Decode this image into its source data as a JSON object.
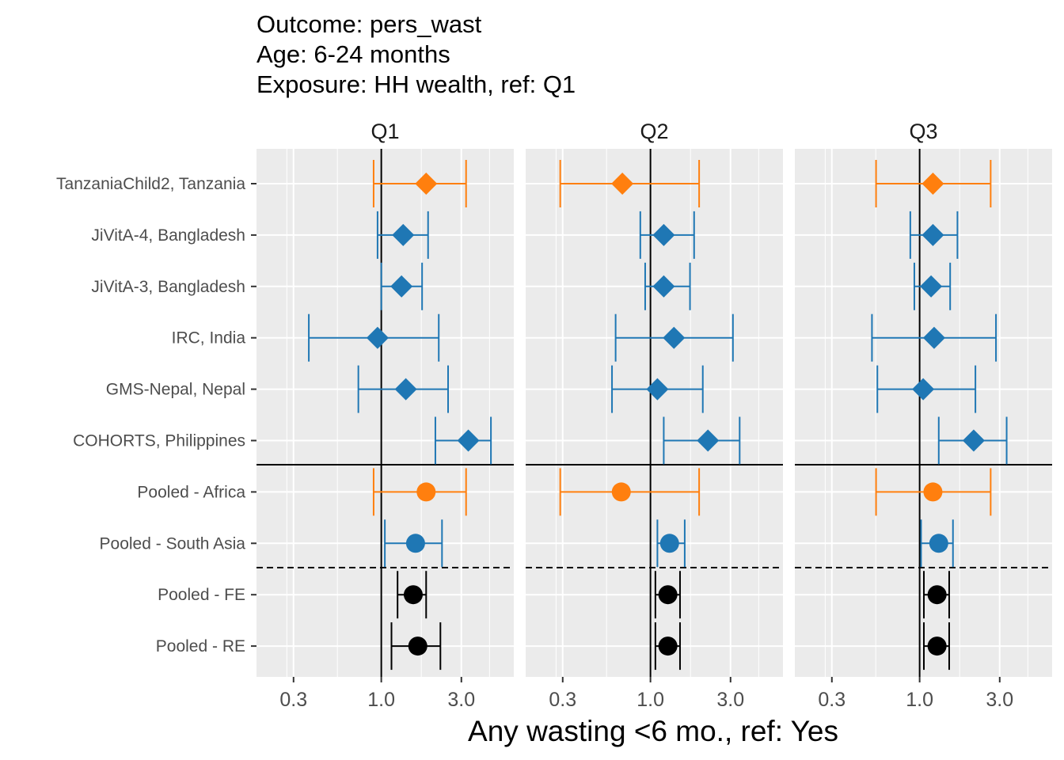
{
  "titles": {
    "line1": "Outcome: pers_wast",
    "line2": "Age: 6-24 months",
    "line3": "Exposure: HH wealth, ref: Q1"
  },
  "colors": {
    "africa": "#ff7f0e",
    "south_asia": "#1f77b4",
    "pooled": "#000000",
    "panel_bg": "#ebebeb",
    "grid": "#ffffff"
  },
  "chart_data": {
    "type": "forest",
    "xlabel": "Any wasting  <6 mo., ref: Yes",
    "x_scale": "log",
    "xlim": [
      0.25,
      6.5
    ],
    "x_ticks": [
      0.3,
      1.0,
      3.0
    ],
    "x_tick_labels": [
      "0.3",
      "1.0",
      "3.0"
    ],
    "reference_line": 1.0,
    "grid": true,
    "panels": [
      "Q1",
      "Q2",
      "Q3"
    ],
    "rows": [
      {
        "label": "TanzaniaChild2, Tanzania",
        "group": "africa",
        "shape": "diamond",
        "estimates": [
          {
            "est": 1.85,
            "lo": 0.9,
            "hi": 3.2
          },
          {
            "est": 0.68,
            "lo": 0.29,
            "hi": 1.95
          },
          {
            "est": 1.2,
            "lo": 0.55,
            "hi": 2.65
          }
        ]
      },
      {
        "label": "JiVitA-4, Bangladesh",
        "group": "south_asia",
        "shape": "diamond",
        "estimates": [
          {
            "est": 1.35,
            "lo": 0.95,
            "hi": 1.9
          },
          {
            "est": 1.2,
            "lo": 0.87,
            "hi": 1.82
          },
          {
            "est": 1.2,
            "lo": 0.88,
            "hi": 1.68
          }
        ]
      },
      {
        "label": "JiVitA-3, Bangladesh",
        "group": "south_asia",
        "shape": "diamond",
        "estimates": [
          {
            "est": 1.32,
            "lo": 1.0,
            "hi": 1.75
          },
          {
            "est": 1.2,
            "lo": 0.93,
            "hi": 1.72
          },
          {
            "est": 1.17,
            "lo": 0.93,
            "hi": 1.52
          }
        ]
      },
      {
        "label": "IRC, India",
        "group": "south_asia",
        "shape": "diamond",
        "estimates": [
          {
            "est": 0.95,
            "lo": 0.37,
            "hi": 2.2
          },
          {
            "est": 1.38,
            "lo": 0.62,
            "hi": 3.1
          },
          {
            "est": 1.22,
            "lo": 0.52,
            "hi": 2.85
          }
        ]
      },
      {
        "label": "GMS-Nepal, Nepal",
        "group": "south_asia",
        "shape": "diamond",
        "estimates": [
          {
            "est": 1.4,
            "lo": 0.73,
            "hi": 2.5
          },
          {
            "est": 1.1,
            "lo": 0.59,
            "hi": 2.05
          },
          {
            "est": 1.05,
            "lo": 0.56,
            "hi": 2.15
          }
        ]
      },
      {
        "label": "COHORTS, Philippines",
        "group": "south_asia",
        "shape": "diamond",
        "estimates": [
          {
            "est": 3.3,
            "lo": 2.1,
            "hi": 4.5
          },
          {
            "est": 2.2,
            "lo": 1.2,
            "hi": 3.4
          },
          {
            "est": 2.1,
            "lo": 1.3,
            "hi": 3.3
          }
        ]
      },
      {
        "label": "Pooled - Africa",
        "group": "africa",
        "shape": "circle",
        "estimates": [
          {
            "est": 1.85,
            "lo": 0.9,
            "hi": 3.2
          },
          {
            "est": 0.67,
            "lo": 0.29,
            "hi": 1.95
          },
          {
            "est": 1.2,
            "lo": 0.55,
            "hi": 2.65
          }
        ]
      },
      {
        "label": "Pooled - South Asia",
        "group": "south_asia",
        "shape": "circle",
        "estimates": [
          {
            "est": 1.6,
            "lo": 1.05,
            "hi": 2.3
          },
          {
            "est": 1.3,
            "lo": 1.1,
            "hi": 1.6
          },
          {
            "est": 1.3,
            "lo": 1.02,
            "hi": 1.58
          }
        ]
      },
      {
        "label": "Pooled - FE",
        "group": "pooled",
        "shape": "circle",
        "estimates": [
          {
            "est": 1.55,
            "lo": 1.25,
            "hi": 1.85
          },
          {
            "est": 1.27,
            "lo": 1.07,
            "hi": 1.5
          },
          {
            "est": 1.27,
            "lo": 1.06,
            "hi": 1.5
          }
        ]
      },
      {
        "label": "Pooled - RE",
        "group": "pooled",
        "shape": "circle",
        "estimates": [
          {
            "est": 1.65,
            "lo": 1.15,
            "hi": 2.25
          },
          {
            "est": 1.27,
            "lo": 1.07,
            "hi": 1.5
          },
          {
            "est": 1.27,
            "lo": 1.06,
            "hi": 1.5
          }
        ]
      }
    ]
  }
}
